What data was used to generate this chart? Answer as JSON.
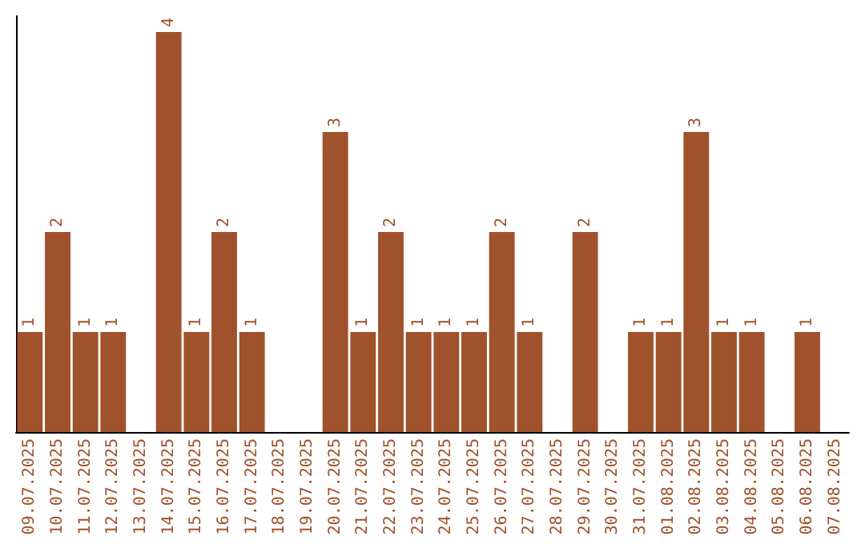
{
  "chart_data": {
    "type": "bar",
    "categories": [
      "09.07.2025",
      "10.07.2025",
      "11.07.2025",
      "12.07.2025",
      "13.07.2025",
      "14.07.2025",
      "15.07.2025",
      "16.07.2025",
      "17.07.2025",
      "18.07.2025",
      "19.07.2025",
      "20.07.2025",
      "21.07.2025",
      "22.07.2025",
      "23.07.2025",
      "24.07.2025",
      "25.07.2025",
      "26.07.2025",
      "27.07.2025",
      "28.07.2025",
      "29.07.2025",
      "30.07.2025",
      "31.07.2025",
      "01.08.2025",
      "02.08.2025",
      "03.08.2025",
      "04.08.2025",
      "05.08.2025",
      "06.08.2025",
      "07.08.2025"
    ],
    "values": [
      1,
      2,
      1,
      1,
      null,
      4,
      1,
      2,
      1,
      null,
      null,
      3,
      1,
      2,
      1,
      1,
      1,
      2,
      1,
      null,
      2,
      null,
      1,
      1,
      3,
      1,
      1,
      null,
      1,
      null
    ],
    "color": "#a0522d",
    "data_labels": true
  }
}
